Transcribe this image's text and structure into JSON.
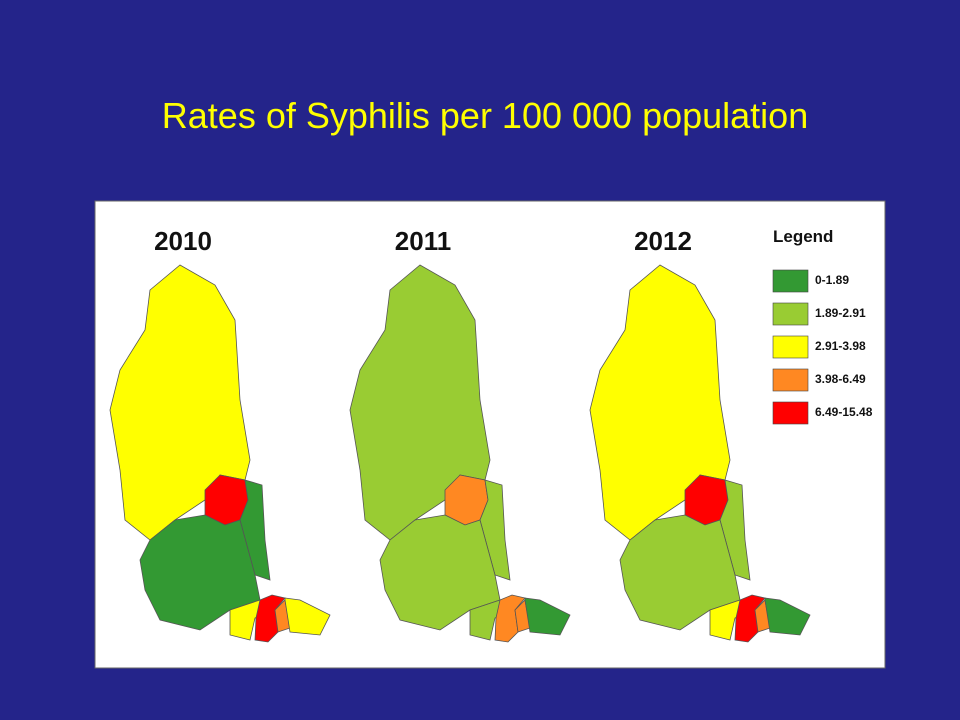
{
  "title": "Rates of Syphilis per 100 000 population",
  "maps": [
    {
      "label": "2010"
    },
    {
      "label": "2011"
    },
    {
      "label": "2012"
    }
  ],
  "legend": {
    "title": "Legend",
    "items": [
      {
        "label": "0-1.89",
        "color": "#339933"
      },
      {
        "label": "1.89-2.91",
        "color": "#99cc33"
      },
      {
        "label": "2.91-3.98",
        "color": "#ffff00"
      },
      {
        "label": "3.98-6.49",
        "color": "#ff8822"
      },
      {
        "label": "6.49-15.48",
        "color": "#ff0000"
      }
    ]
  }
}
